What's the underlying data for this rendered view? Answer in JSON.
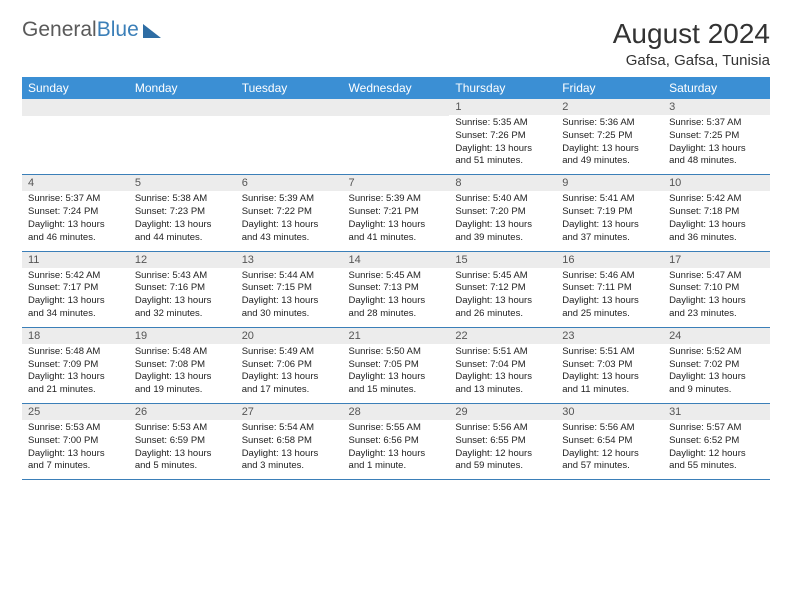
{
  "logo": {
    "text_gray": "General",
    "text_blue": "Blue"
  },
  "title": "August 2024",
  "location": "Gafsa, Gafsa, Tunisia",
  "colors": {
    "header_bg": "#3b8fd4",
    "header_text": "#ffffff",
    "daynum_bg": "#ececec",
    "border": "#3b7fb8"
  },
  "day_names": [
    "Sunday",
    "Monday",
    "Tuesday",
    "Wednesday",
    "Thursday",
    "Friday",
    "Saturday"
  ],
  "weeks": [
    [
      null,
      null,
      null,
      null,
      {
        "n": "1",
        "sr": "5:35 AM",
        "ss": "7:26 PM",
        "dl": "13 hours and 51 minutes."
      },
      {
        "n": "2",
        "sr": "5:36 AM",
        "ss": "7:25 PM",
        "dl": "13 hours and 49 minutes."
      },
      {
        "n": "3",
        "sr": "5:37 AM",
        "ss": "7:25 PM",
        "dl": "13 hours and 48 minutes."
      }
    ],
    [
      {
        "n": "4",
        "sr": "5:37 AM",
        "ss": "7:24 PM",
        "dl": "13 hours and 46 minutes."
      },
      {
        "n": "5",
        "sr": "5:38 AM",
        "ss": "7:23 PM",
        "dl": "13 hours and 44 minutes."
      },
      {
        "n": "6",
        "sr": "5:39 AM",
        "ss": "7:22 PM",
        "dl": "13 hours and 43 minutes."
      },
      {
        "n": "7",
        "sr": "5:39 AM",
        "ss": "7:21 PM",
        "dl": "13 hours and 41 minutes."
      },
      {
        "n": "8",
        "sr": "5:40 AM",
        "ss": "7:20 PM",
        "dl": "13 hours and 39 minutes."
      },
      {
        "n": "9",
        "sr": "5:41 AM",
        "ss": "7:19 PM",
        "dl": "13 hours and 37 minutes."
      },
      {
        "n": "10",
        "sr": "5:42 AM",
        "ss": "7:18 PM",
        "dl": "13 hours and 36 minutes."
      }
    ],
    [
      {
        "n": "11",
        "sr": "5:42 AM",
        "ss": "7:17 PM",
        "dl": "13 hours and 34 minutes."
      },
      {
        "n": "12",
        "sr": "5:43 AM",
        "ss": "7:16 PM",
        "dl": "13 hours and 32 minutes."
      },
      {
        "n": "13",
        "sr": "5:44 AM",
        "ss": "7:15 PM",
        "dl": "13 hours and 30 minutes."
      },
      {
        "n": "14",
        "sr": "5:45 AM",
        "ss": "7:13 PM",
        "dl": "13 hours and 28 minutes."
      },
      {
        "n": "15",
        "sr": "5:45 AM",
        "ss": "7:12 PM",
        "dl": "13 hours and 26 minutes."
      },
      {
        "n": "16",
        "sr": "5:46 AM",
        "ss": "7:11 PM",
        "dl": "13 hours and 25 minutes."
      },
      {
        "n": "17",
        "sr": "5:47 AM",
        "ss": "7:10 PM",
        "dl": "13 hours and 23 minutes."
      }
    ],
    [
      {
        "n": "18",
        "sr": "5:48 AM",
        "ss": "7:09 PM",
        "dl": "13 hours and 21 minutes."
      },
      {
        "n": "19",
        "sr": "5:48 AM",
        "ss": "7:08 PM",
        "dl": "13 hours and 19 minutes."
      },
      {
        "n": "20",
        "sr": "5:49 AM",
        "ss": "7:06 PM",
        "dl": "13 hours and 17 minutes."
      },
      {
        "n": "21",
        "sr": "5:50 AM",
        "ss": "7:05 PM",
        "dl": "13 hours and 15 minutes."
      },
      {
        "n": "22",
        "sr": "5:51 AM",
        "ss": "7:04 PM",
        "dl": "13 hours and 13 minutes."
      },
      {
        "n": "23",
        "sr": "5:51 AM",
        "ss": "7:03 PM",
        "dl": "13 hours and 11 minutes."
      },
      {
        "n": "24",
        "sr": "5:52 AM",
        "ss": "7:02 PM",
        "dl": "13 hours and 9 minutes."
      }
    ],
    [
      {
        "n": "25",
        "sr": "5:53 AM",
        "ss": "7:00 PM",
        "dl": "13 hours and 7 minutes."
      },
      {
        "n": "26",
        "sr": "5:53 AM",
        "ss": "6:59 PM",
        "dl": "13 hours and 5 minutes."
      },
      {
        "n": "27",
        "sr": "5:54 AM",
        "ss": "6:58 PM",
        "dl": "13 hours and 3 minutes."
      },
      {
        "n": "28",
        "sr": "5:55 AM",
        "ss": "6:56 PM",
        "dl": "13 hours and 1 minute."
      },
      {
        "n": "29",
        "sr": "5:56 AM",
        "ss": "6:55 PM",
        "dl": "12 hours and 59 minutes."
      },
      {
        "n": "30",
        "sr": "5:56 AM",
        "ss": "6:54 PM",
        "dl": "12 hours and 57 minutes."
      },
      {
        "n": "31",
        "sr": "5:57 AM",
        "ss": "6:52 PM",
        "dl": "12 hours and 55 minutes."
      }
    ]
  ],
  "labels": {
    "sunrise": "Sunrise:",
    "sunset": "Sunset:",
    "daylight": "Daylight:"
  }
}
